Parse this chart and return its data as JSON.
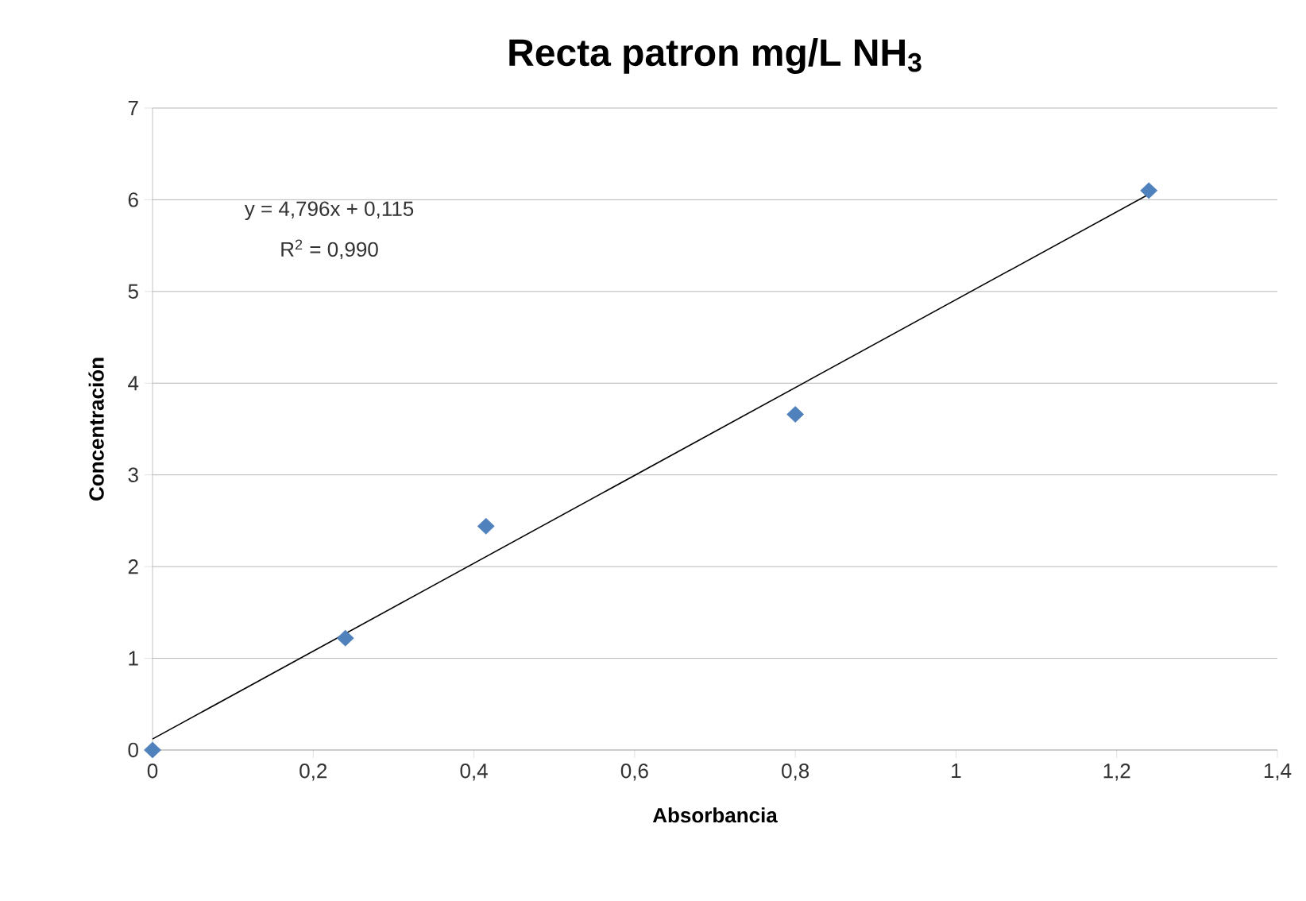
{
  "chart_data": {
    "type": "scatter",
    "title": "Recta patron mg/L NH$_{3}$",
    "xlabel": "Absorbancia",
    "ylabel": "Concentración",
    "annotations": [
      "y = 4,796x + 0,115",
      "R$^{2}$ = 0,990"
    ],
    "series": [
      {
        "color": "#4f81bd",
        "marker": "diamond",
        "x": [
          0,
          0.24,
          0.415,
          0.8,
          1.24
        ],
        "values": [
          0,
          1.22,
          2.44,
          3.66,
          6.1
        ]
      },
      {
        "type": "line",
        "color": "#000000",
        "marker": "none",
        "x": [
          0,
          1.24
        ],
        "values": [
          0.12,
          6.06
        ]
      }
    ],
    "xlim": [
      0,
      1.4
    ],
    "ylim": [
      0,
      7
    ],
    "xticks": [
      0,
      {
        "value": 0.2,
        "label": "0,2"
      },
      {
        "value": 0.4,
        "label": "0,4"
      },
      {
        "value": 0.6,
        "label": "0,6"
      },
      {
        "value": 0.8,
        "label": "0,8"
      },
      1,
      {
        "value": 1.2,
        "label": "1,2"
      },
      {
        "value": 1.4,
        "label": "1,4"
      }
    ],
    "yticks": [
      0,
      1,
      2,
      3,
      4,
      5,
      6,
      7
    ],
    "grid": "y"
  }
}
